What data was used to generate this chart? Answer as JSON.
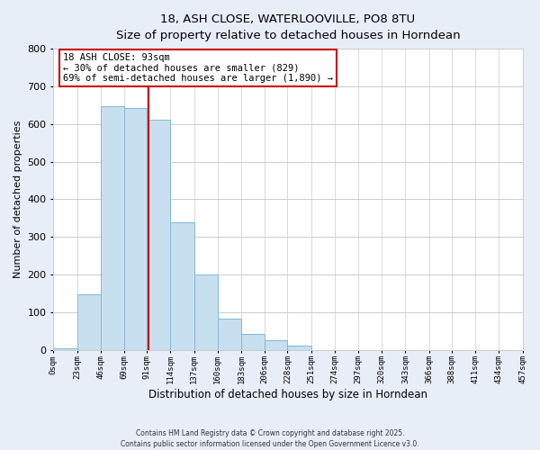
{
  "title_line1": "18, ASH CLOSE, WATERLOOVILLE, PO8 8TU",
  "title_line2": "Size of property relative to detached houses in Horndean",
  "xlabel": "Distribution of detached houses by size in Horndean",
  "ylabel": "Number of detached properties",
  "bar_color": "#c8dff0",
  "bar_edge_color": "#7fb8d8",
  "bin_edges": [
    0,
    23,
    46,
    69,
    91,
    114,
    137,
    160,
    183,
    206,
    228,
    251,
    274,
    297,
    320,
    343,
    366,
    388,
    411,
    434,
    457
  ],
  "bin_labels": [
    "0sqm",
    "23sqm",
    "46sqm",
    "69sqm",
    "91sqm",
    "114sqm",
    "137sqm",
    "160sqm",
    "183sqm",
    "206sqm",
    "228sqm",
    "251sqm",
    "274sqm",
    "297sqm",
    "320sqm",
    "343sqm",
    "366sqm",
    "388sqm",
    "411sqm",
    "434sqm",
    "457sqm"
  ],
  "bar_heights": [
    5,
    148,
    647,
    643,
    611,
    339,
    199,
    83,
    42,
    26,
    10,
    0,
    0,
    0,
    0,
    0,
    0,
    0,
    0,
    0
  ],
  "property_size": 93,
  "vline_color": "#cc0000",
  "ylim": [
    0,
    800
  ],
  "yticks": [
    0,
    100,
    200,
    300,
    400,
    500,
    600,
    700,
    800
  ],
  "annotation_title": "18 ASH CLOSE: 93sqm",
  "annotation_line2": "← 30% of detached houses are smaller (829)",
  "annotation_line3": "69% of semi-detached houses are larger (1,890) →",
  "footer_line1": "Contains HM Land Registry data © Crown copyright and database right 2025.",
  "footer_line2": "Contains public sector information licensed under the Open Government Licence v3.0.",
  "background_color": "#e8eef8",
  "plot_background_color": "#ffffff",
  "grid_color": "#cccccc"
}
